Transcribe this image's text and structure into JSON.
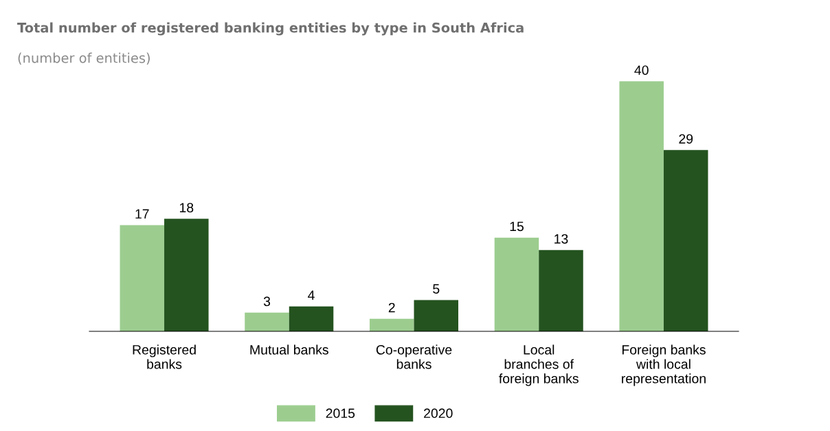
{
  "chart_data": {
    "type": "bar",
    "title": "Total number of registered banking entities by type in South Africa",
    "subtitle": "(number of entities)",
    "categories": [
      "Registered\nbanks",
      "Mutual banks",
      "Co-operative\nbanks",
      "Local\nbranches of\nforeign banks",
      "Foreign banks\nwith local\nrepresentation"
    ],
    "series": [
      {
        "name": "2015",
        "color": "#9ccd8f",
        "values": [
          17,
          3,
          2,
          15,
          40
        ]
      },
      {
        "name": "2020",
        "color": "#24531f",
        "values": [
          18,
          4,
          5,
          13,
          29
        ]
      }
    ],
    "data_labels": true,
    "legend": "bottom",
    "grid": false
  }
}
